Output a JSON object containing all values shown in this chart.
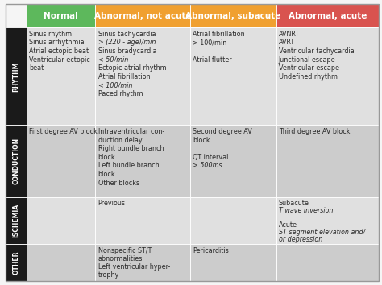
{
  "col_headers": [
    "Normal",
    "Abnormal, not acute",
    "Abnormal, subacute",
    "Abnormal, acute"
  ],
  "col_header_colors": [
    "#5db85c",
    "#f0a030",
    "#f0a030",
    "#d9534f"
  ],
  "col_header_text_color": "#ffffff",
  "row_labels": [
    "RHYTHM",
    "CONDUCTION",
    "ISCHEMIA",
    "OTHER"
  ],
  "row_label_bg": "#1a1a1a",
  "row_label_text_color": "#ffffff",
  "cell_bg_light": "#e0e0e0",
  "cell_bg_dark": "#cccccc",
  "cell_text_color": "#2a2a2a",
  "border_color": "#999999",
  "background_color": "#f5f5f5",
  "cells": [
    [
      "Sinus rhythm\nSinus arrhythmia\nAtrial ectopic beat\nVentricular ectopic\nbeat",
      "Sinus tachycardia\n> (220 - age)/min\nSinus bradycardia\n< 50/min\nEctopic atrial rhythm\nAtrial fibrillation\n< 100/min\nPaced rhythm",
      "Atrial fibrillation\n> 100/min\n\nAtrial flutter",
      "AVNRT\nAVRT\nVentricular tachycardia\nJunctional escape\nVentricular escape\nUndefined rhythm"
    ],
    [
      "First degree AV block",
      "Intraventricular con-\nduction delay\nRight bundle branch\nblock\nLeft bundle branch\nblock\nOther blocks",
      "Second degree AV\nblock\n\nQT interval\n> 500ms",
      "Third degree AV block"
    ],
    [
      "",
      "Previous",
      "",
      "Subacute\nT wave inversion\n\nAcute\nST segment elevation and/\nor depression"
    ],
    [
      "",
      "Nonspecific ST/T\nabnormalities\nLeft ventricular hyper-\ntrophy",
      "Pericarditis",
      ""
    ]
  ],
  "italic_lines": [
    "> (220 - age)/min",
    "< 50/min",
    "< 100/min",
    "> 500ms",
    "T wave inversion",
    "ST segment elevation and/",
    "or depression"
  ],
  "figsize": [
    4.74,
    3.54
  ],
  "dpi": 100,
  "fontsize_header": 7.5,
  "fontsize_cell": 5.8,
  "fontsize_row_label": 5.5
}
